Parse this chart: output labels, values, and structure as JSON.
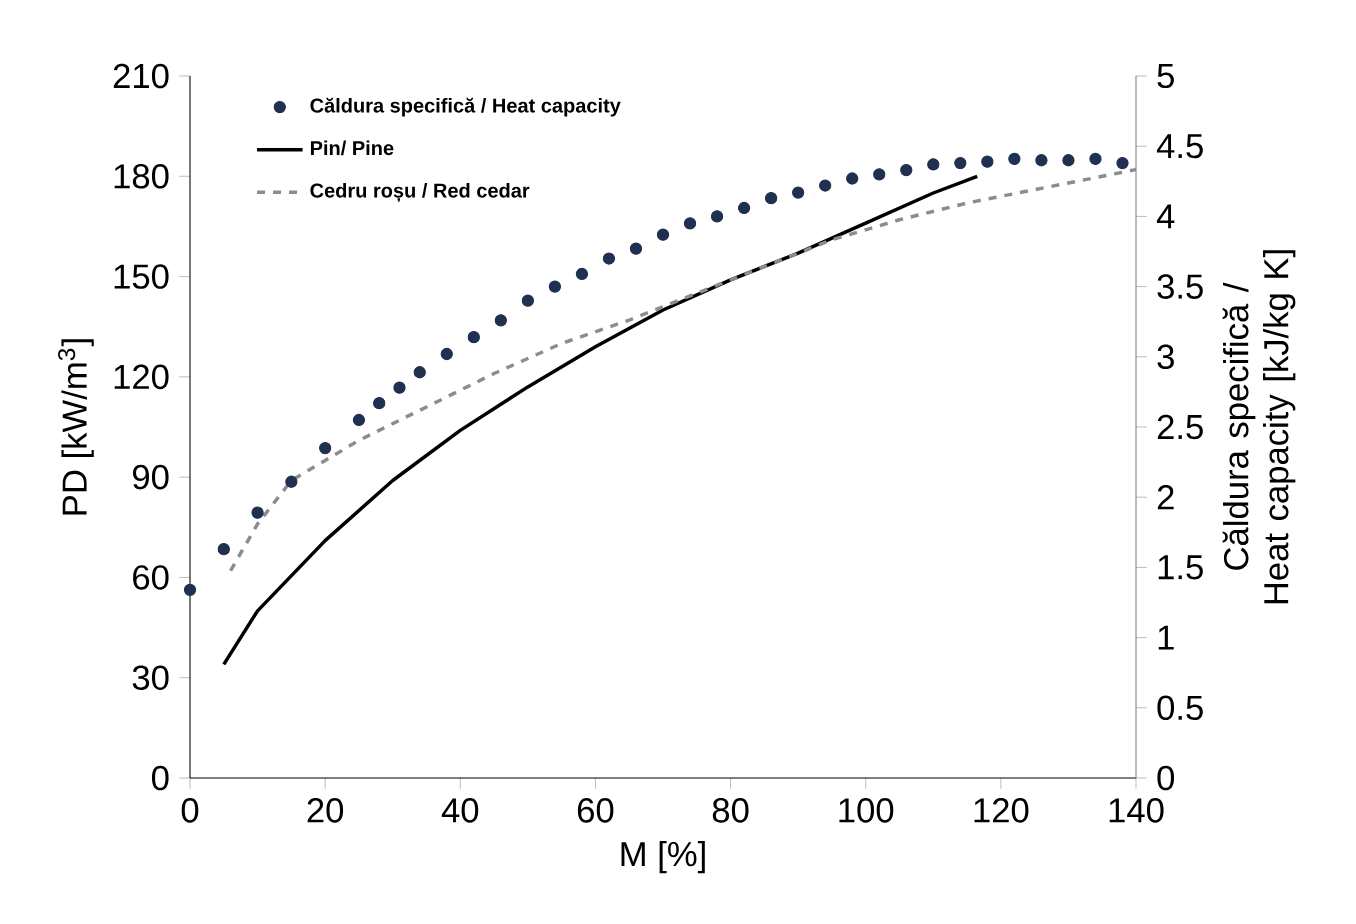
{
  "chart_data": {
    "type": "line",
    "xlabel": "M [%]",
    "ylabel": "PD [kW/m$^{3}$]",
    "y2label": "Căldura specifică / Heat capacity [kJ/kg K]",
    "xlim": [
      0,
      140
    ],
    "xticks": [
      0,
      20,
      40,
      60,
      80,
      100,
      120,
      140
    ],
    "ylim": [
      0,
      210
    ],
    "yticks": [
      0,
      30,
      60,
      90,
      120,
      150,
      180,
      210
    ],
    "y2lim": [
      0,
      5
    ],
    "y2ticks": [
      0,
      0.5,
      1,
      1.5,
      2,
      2.5,
      3,
      3.5,
      4,
      4.5,
      5
    ],
    "legend": "top left",
    "series": [
      {
        "name": "Căldura specifică / Heat capacity",
        "type": "scatter",
        "axis": "y2",
        "marker": "circle",
        "color": "#1f3050",
        "x": [
          0,
          5,
          10,
          15,
          20,
          25,
          28,
          31,
          34,
          38,
          42,
          46,
          50,
          54,
          58,
          62,
          66,
          70,
          74,
          78,
          82,
          86,
          90,
          94,
          98,
          102,
          106,
          110,
          114,
          118,
          122,
          126,
          130,
          134,
          138
        ],
        "values": [
          1.34,
          1.63,
          1.89,
          2.11,
          2.35,
          2.55,
          2.67,
          2.78,
          2.89,
          3.02,
          3.14,
          3.26,
          3.4,
          3.5,
          3.59,
          3.7,
          3.77,
          3.87,
          3.95,
          4.0,
          4.06,
          4.13,
          4.17,
          4.22,
          4.27,
          4.3,
          4.33,
          4.37,
          4.38,
          4.39,
          4.41,
          4.4,
          4.4,
          4.41,
          4.38
        ]
      },
      {
        "name": "Pin/ Pine",
        "line_style": "solid",
        "color": "#000000",
        "x": [
          5,
          10,
          20,
          30,
          40,
          50,
          60,
          70,
          80,
          90,
          100,
          110,
          116.5
        ],
        "values": [
          34,
          50,
          71,
          89,
          104,
          117,
          129,
          140,
          149,
          157,
          166,
          175,
          180
        ]
      },
      {
        "name": "Cedru roșu / Red cedar",
        "line_style": "dashed",
        "color": "#8c8c8c",
        "x": [
          6,
          10,
          15,
          20,
          25,
          35,
          45,
          55,
          65,
          75,
          85,
          95,
          105,
          115,
          125,
          135,
          140
        ],
        "values": [
          62,
          76,
          89,
          95,
          101,
          111,
          121,
          130,
          137,
          145,
          153,
          161,
          167,
          172,
          176,
          180,
          182
        ]
      }
    ]
  }
}
